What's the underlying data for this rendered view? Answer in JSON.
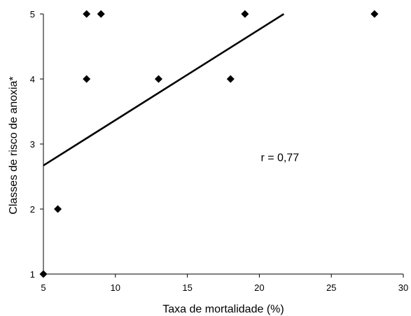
{
  "chart_data": {
    "type": "scatter",
    "title": "",
    "xlabel": "Taxa de mortalidade (%)",
    "ylabel": "Classes de risco de anoxia*",
    "xlim": [
      5,
      30
    ],
    "ylim": [
      1,
      5
    ],
    "xticks": [
      5,
      10,
      15,
      20,
      25,
      30
    ],
    "yticks": [
      1,
      2,
      3,
      4,
      5
    ],
    "grid": false,
    "legend": "none",
    "marker": "diamond",
    "marker_color": "#000000",
    "series": [
      {
        "points": [
          {
            "x": 5,
            "y": 1
          },
          {
            "x": 6,
            "y": 2
          },
          {
            "x": 8,
            "y": 4
          },
          {
            "x": 8,
            "y": 5
          },
          {
            "x": 9,
            "y": 5
          },
          {
            "x": 13,
            "y": 4
          },
          {
            "x": 18,
            "y": 4
          },
          {
            "x": 19,
            "y": 5
          },
          {
            "x": 28,
            "y": 5
          }
        ]
      }
    ],
    "trendline": {
      "type": "linear",
      "x_start": 5,
      "y_start": 2.67,
      "x_end": 21.7,
      "y_end": 5
    },
    "annotations": [
      {
        "text": "r = 0,77",
        "x": 20.1,
        "y": 2.8
      }
    ]
  }
}
